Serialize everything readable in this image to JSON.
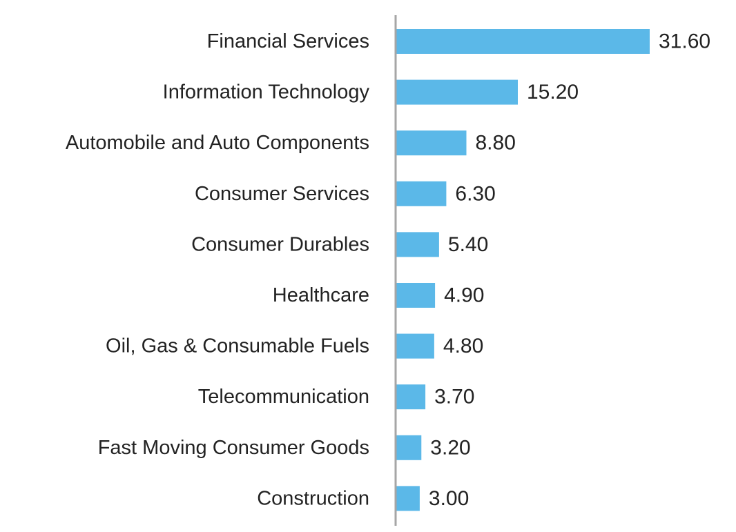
{
  "chart_data": {
    "type": "bar",
    "orientation": "horizontal",
    "categories": [
      "Financial Services",
      "Information Technology",
      "Automobile and Auto Components",
      "Consumer Services",
      "Consumer Durables",
      "Healthcare",
      "Oil, Gas & Consumable Fuels",
      "Telecommunication",
      "Fast Moving Consumer Goods",
      "Construction"
    ],
    "values": [
      31.6,
      15.2,
      8.8,
      6.3,
      5.4,
      4.9,
      4.8,
      3.7,
      3.2,
      3.0
    ],
    "value_labels": [
      "31.60",
      "15.20",
      "8.80",
      "6.30",
      "5.40",
      "4.90",
      "4.80",
      "3.70",
      "3.20",
      "3.00"
    ],
    "title": "",
    "xlabel": "",
    "ylabel": "",
    "xlim": [
      0,
      31.6
    ],
    "grid": false,
    "legend": "none",
    "bar_color": "#5bb8e8",
    "axis_color": "#a6a6a6"
  }
}
